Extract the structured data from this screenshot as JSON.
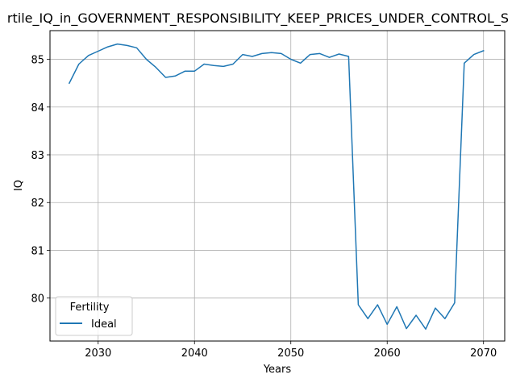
{
  "chart_data": {
    "type": "line",
    "title": "rtile_IQ_in_GOVERNMENT_RESPONSIBILITY_KEEP_PRICES_UNDER_CONTROL_S",
    "xlabel": "Years",
    "ylabel": "IQ",
    "xlim": [
      2025,
      2072.2
    ],
    "ylim": [
      79.1,
      85.6
    ],
    "xticks": [
      2030,
      2040,
      2050,
      2060,
      2070
    ],
    "yticks": [
      80,
      81,
      82,
      83,
      84,
      85
    ],
    "grid": true,
    "legend": {
      "title": "Fertility",
      "placement": "lower-left"
    },
    "colors": {
      "series": "#1f77b4",
      "grid": "#b0b0b0"
    },
    "series": [
      {
        "name": "Ideal",
        "x": [
          2027,
          2028,
          2029,
          2030,
          2031,
          2032,
          2033,
          2034,
          2035,
          2036,
          2037,
          2038,
          2039,
          2040,
          2041,
          2042,
          2043,
          2044,
          2045,
          2046,
          2047,
          2048,
          2049,
          2050,
          2051,
          2052,
          2053,
          2054,
          2055,
          2056,
          2057,
          2058,
          2059,
          2060,
          2061,
          2062,
          2063,
          2064,
          2065,
          2066,
          2067,
          2068,
          2069,
          2070
        ],
        "values": [
          84.5,
          84.9,
          85.08,
          85.17,
          85.26,
          85.32,
          85.29,
          85.24,
          85.0,
          84.83,
          84.62,
          84.65,
          84.75,
          84.75,
          84.9,
          84.87,
          84.85,
          84.9,
          85.1,
          85.06,
          85.12,
          85.14,
          85.12,
          85.0,
          84.92,
          85.1,
          85.12,
          85.04,
          85.11,
          85.06,
          79.86,
          79.57,
          79.86,
          79.45,
          79.82,
          79.36,
          79.64,
          79.35,
          79.79,
          79.57,
          79.9,
          84.92,
          85.1,
          85.18
        ]
      }
    ]
  }
}
